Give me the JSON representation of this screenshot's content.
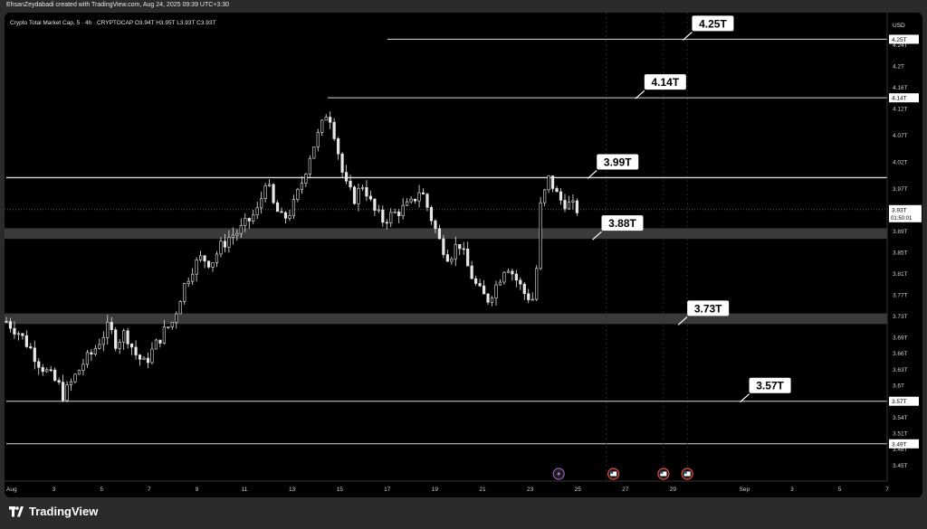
{
  "header": {
    "created_by": "EhsanZeydabadi created with TradingView.com, Aug 24, 2025 09:39 UTC+3:30"
  },
  "symbol": {
    "legend": "Crypto Total Market Cap, 5 · 4h · CRYPTOCAP  O3.94T  H3.95T  L3.93T  C3.93T"
  },
  "currency": "USD",
  "footer": {
    "brand": "TradingView"
  },
  "colors": {
    "background": "#000000",
    "candle": "#e8e8e8",
    "zone": "#3a3a3a",
    "label_bg": "#ffffff",
    "label_text": "#000000"
  },
  "chart_data": {
    "type": "candlestick",
    "unit": "T",
    "ylim": [
      3.42,
      4.3
    ],
    "y_ticks": [
      "4.24T",
      "4.2T",
      "4.16T",
      "4.12T",
      "4.07T",
      "4.02T",
      "3.97T",
      "3.89T",
      "3.85T",
      "3.81T",
      "3.77T",
      "3.73T",
      "3.69T",
      "3.66T",
      "3.63T",
      "3.6T",
      "3.54T",
      "3.51T",
      "3.48T",
      "3.45T"
    ],
    "x_ticks": [
      "Aug",
      "3",
      "5",
      "7",
      "9",
      "11",
      "13",
      "15",
      "17",
      "19",
      "21",
      "23",
      "25",
      "27",
      "29",
      "Sep",
      "3",
      "5",
      "7"
    ],
    "x_range_days": [
      0,
      38
    ],
    "price_tags": [
      {
        "label": "4.25T",
        "value": 4.25
      },
      {
        "label": "4.14T",
        "value": 4.14
      },
      {
        "label": "3.57T",
        "value": 3.57
      },
      {
        "label": "3.49T",
        "value": 3.49
      }
    ],
    "current_price": {
      "label": "3.93T",
      "countdown": "01:50:01",
      "value": 3.93
    },
    "levels": [
      {
        "label": "4.25T",
        "value": 4.25,
        "start_day": 16.0,
        "callout_day": 28.8
      },
      {
        "label": "4.14T",
        "value": 4.14,
        "start_day": 13.5,
        "callout_day": 26.8
      },
      {
        "label": "3.99T",
        "value": 3.99,
        "start_day": 0,
        "callout_day": 24.8
      },
      {
        "label": "3.57T",
        "value": 3.57,
        "start_day": 0,
        "callout_day": 31.2
      },
      {
        "label": "3.49T",
        "value": 3.49,
        "start_day": 0,
        "callout_day": null
      }
    ],
    "zones": [
      {
        "label": "3.88T",
        "low": 3.875,
        "high": 3.895,
        "callout_day": 25.0
      },
      {
        "label": "3.73T",
        "low": 3.715,
        "high": 3.735,
        "callout_day": 28.6
      }
    ],
    "event_markers": [
      {
        "icon": "lightning-icon",
        "day": 23.2
      },
      {
        "icon": "us-flag-icon",
        "day": 25.5
      },
      {
        "icon": "us-flag-icon",
        "day": 27.6
      },
      {
        "icon": "us-flag-icon",
        "day": 28.6
      }
    ],
    "close_path": [
      [
        0.0,
        3.72
      ],
      [
        0.5,
        3.7
      ],
      [
        1.0,
        3.67
      ],
      [
        1.4,
        3.64
      ],
      [
        1.8,
        3.62
      ],
      [
        2.2,
        3.6
      ],
      [
        2.4,
        3.58
      ],
      [
        2.8,
        3.61
      ],
      [
        3.2,
        3.64
      ],
      [
        3.6,
        3.66
      ],
      [
        4.0,
        3.69
      ],
      [
        4.3,
        3.71
      ],
      [
        4.6,
        3.68
      ],
      [
        5.0,
        3.7
      ],
      [
        5.4,
        3.66
      ],
      [
        5.8,
        3.64
      ],
      [
        6.2,
        3.67
      ],
      [
        6.6,
        3.7
      ],
      [
        7.0,
        3.72
      ],
      [
        7.4,
        3.78
      ],
      [
        7.8,
        3.82
      ],
      [
        8.2,
        3.84
      ],
      [
        8.6,
        3.83
      ],
      [
        9.0,
        3.86
      ],
      [
        9.4,
        3.88
      ],
      [
        9.8,
        3.89
      ],
      [
        10.2,
        3.91
      ],
      [
        10.6,
        3.93
      ],
      [
        10.9,
        3.99
      ],
      [
        11.2,
        3.94
      ],
      [
        11.6,
        3.91
      ],
      [
        12.0,
        3.93
      ],
      [
        12.4,
        3.98
      ],
      [
        12.8,
        4.04
      ],
      [
        13.2,
        4.08
      ],
      [
        13.5,
        4.12
      ],
      [
        13.8,
        4.07
      ],
      [
        14.2,
        3.98
      ],
      [
        14.6,
        3.95
      ],
      [
        15.0,
        3.98
      ],
      [
        15.4,
        3.93
      ],
      [
        15.8,
        3.91
      ],
      [
        16.2,
        3.92
      ],
      [
        16.6,
        3.93
      ],
      [
        17.0,
        3.94
      ],
      [
        17.4,
        3.97
      ],
      [
        17.8,
        3.92
      ],
      [
        18.2,
        3.87
      ],
      [
        18.6,
        3.84
      ],
      [
        19.0,
        3.87
      ],
      [
        19.4,
        3.82
      ],
      [
        19.8,
        3.78
      ],
      [
        20.2,
        3.76
      ],
      [
        20.6,
        3.79
      ],
      [
        21.0,
        3.83
      ],
      [
        21.4,
        3.8
      ],
      [
        21.8,
        3.77
      ],
      [
        22.2,
        3.76
      ],
      [
        22.4,
        3.93
      ],
      [
        22.8,
        3.99
      ],
      [
        23.2,
        3.95
      ],
      [
        23.6,
        3.94
      ],
      [
        24.0,
        3.93
      ]
    ]
  }
}
